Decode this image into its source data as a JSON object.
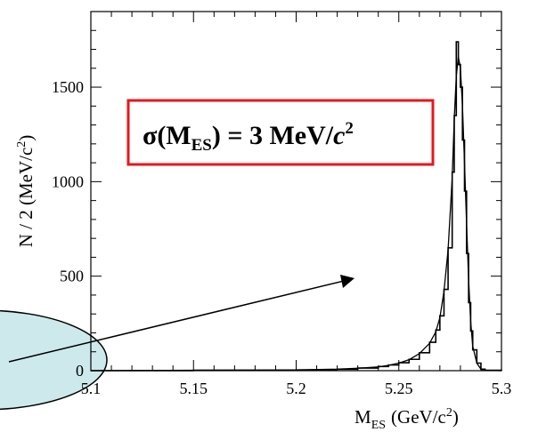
{
  "chart_data": {
    "type": "line",
    "title": "",
    "xlabel": {
      "base": "M",
      "sub": "ES",
      "unit": "(GeV/c",
      "sup": "2",
      "close": ")"
    },
    "ylabel": {
      "text": "N / 2 (MeV/c",
      "sup": "2",
      "close": ")"
    },
    "xlim": [
      5.1,
      5.3
    ],
    "ylim": [
      0,
      1900
    ],
    "x_ticks": [
      5.1,
      5.15,
      5.2,
      5.25,
      5.3
    ],
    "x_tick_labels": [
      "5.1",
      "5.15",
      "5.2",
      "5.25",
      "5.3"
    ],
    "y_ticks": [
      0,
      500,
      1000,
      1500
    ],
    "y_tick_labels": [
      "0",
      "500",
      "1000",
      "1500"
    ],
    "grid": false,
    "series": [
      {
        "style": "histogram",
        "x": [
          5.1,
          5.15,
          5.2,
          5.22,
          5.23,
          5.24,
          5.245,
          5.25,
          5.255,
          5.26,
          5.265,
          5.268,
          5.27,
          5.272,
          5.274,
          5.276,
          5.277,
          5.278,
          5.279,
          5.28,
          5.281,
          5.282,
          5.283,
          5.284,
          5.285,
          5.286,
          5.288,
          5.29,
          5.292,
          5.3
        ],
        "values": [
          0,
          2,
          4,
          8,
          14,
          22,
          30,
          42,
          60,
          95,
          150,
          215,
          290,
          430,
          650,
          1050,
          1350,
          1740,
          1620,
          1500,
          1220,
          950,
          620,
          360,
          210,
          110,
          40,
          8,
          2,
          0
        ]
      },
      {
        "style": "fit",
        "x": [
          5.1,
          5.15,
          5.2,
          5.22,
          5.23,
          5.24,
          5.245,
          5.25,
          5.255,
          5.26,
          5.265,
          5.268,
          5.27,
          5.272,
          5.274,
          5.276,
          5.277,
          5.278,
          5.279,
          5.28,
          5.281,
          5.282,
          5.283,
          5.284,
          5.285,
          5.286,
          5.288,
          5.29,
          5.292,
          5.3
        ],
        "values": [
          0,
          2,
          4,
          8,
          13,
          20,
          28,
          40,
          58,
          90,
          145,
          205,
          280,
          420,
          640,
          1020,
          1330,
          1560,
          1660,
          1600,
          1400,
          1100,
          780,
          480,
          260,
          130,
          40,
          8,
          2,
          0
        ]
      }
    ],
    "annotation": {
      "sigma": "σ(M",
      "sub": "ES",
      "rest": ") = 3 MeV/",
      "c": "c",
      "sup": "2",
      "border_color": "#e8161b"
    },
    "callout": {
      "fill": "#cde9ec",
      "stroke": "#000000"
    }
  }
}
